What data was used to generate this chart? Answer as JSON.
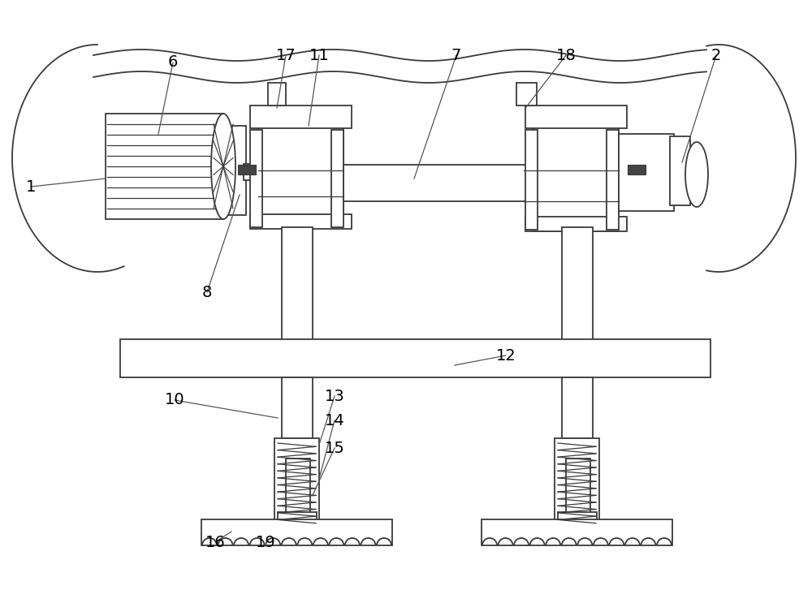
{
  "bg_color": "#ffffff",
  "line_color": "#3a3a3a",
  "label_color": "#000000",
  "fig_width": 10.0,
  "fig_height": 7.27,
  "lw": 1.3
}
